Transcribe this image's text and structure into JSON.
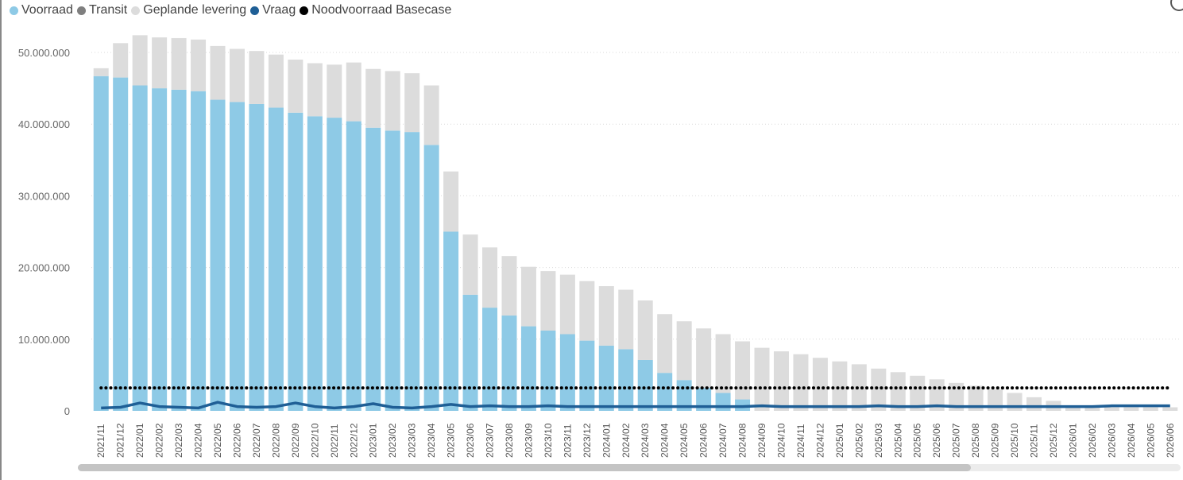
{
  "legend": [
    {
      "label": "Voorraad",
      "color": "#8ecae6"
    },
    {
      "label": "Transit",
      "color": "#7f7f7f"
    },
    {
      "label": "Geplande levering",
      "color": "#dcdcdc"
    },
    {
      "label": "Vraag",
      "color": "#1f5f96"
    },
    {
      "label": "Noodvoorraad Basecase",
      "color": "#000000"
    }
  ],
  "chart_data": {
    "type": "bar",
    "stacked": true,
    "x_tick_labels": [
      "2021/11",
      "2021/12",
      "2022/01",
      "2022/02",
      "2022/03",
      "2022/04",
      "2022/05",
      "2022/06",
      "2022/07",
      "2022/08",
      "2022/09",
      "2022/10",
      "2022/11",
      "2022/12",
      "2023/01",
      "2023/02",
      "2023/03",
      "2023/04",
      "2023/05",
      "2023/06",
      "2023/07",
      "2023/08",
      "2023/09",
      "2023/10",
      "2023/11",
      "2023/12",
      "2024/01",
      "2024/02",
      "2024/03",
      "2024/04",
      "2024/05",
      "2024/06",
      "2024/07",
      "2024/08",
      "2024/09",
      "2024/10",
      "2024/11",
      "2024/12",
      "2025/01",
      "2025/02",
      "2025/03",
      "2025/04",
      "2025/05",
      "2025/06",
      "2025/07",
      "2025/08",
      "2025/09",
      "2025/10",
      "2025/11",
      "2025/12",
      "2026/01",
      "2026/02",
      "2026/03",
      "2026/04",
      "2026/05",
      "2026/06"
    ],
    "y_tick_labels": [
      "0",
      "10.000.000",
      "20.000.000",
      "30.000.000",
      "40.000.000",
      "50.000.000"
    ],
    "ylim": [
      0,
      55000000
    ],
    "grid": true,
    "legend_position": "top-left",
    "series": [
      {
        "name": "Voorraad",
        "kind": "bar",
        "color": "#8ecae6",
        "values": [
          46700000,
          46500000,
          45400000,
          45000000,
          44800000,
          44600000,
          43400000,
          43100000,
          42800000,
          42300000,
          41600000,
          41100000,
          40900000,
          40400000,
          39500000,
          39100000,
          38900000,
          37100000,
          25000000,
          16200000,
          14400000,
          13300000,
          11800000,
          11200000,
          10700000,
          9800000,
          9100000,
          8600000,
          7100000,
          5300000,
          4300000,
          3200000,
          2500000,
          1600000,
          0,
          0,
          0,
          0,
          0,
          0,
          0,
          0,
          0,
          0,
          0,
          0,
          0,
          0,
          0,
          0,
          0,
          0,
          0,
          0,
          0,
          0
        ]
      },
      {
        "name": "Transit",
        "kind": "bar",
        "color": "#7f7f7f",
        "values": [
          0,
          0,
          0,
          0,
          0,
          0,
          0,
          0,
          0,
          0,
          0,
          0,
          0,
          0,
          0,
          0,
          0,
          0,
          0,
          0,
          0,
          0,
          0,
          0,
          0,
          0,
          0,
          0,
          0,
          0,
          0,
          0,
          0,
          0,
          0,
          0,
          0,
          0,
          0,
          0,
          0,
          0,
          0,
          0,
          0,
          0,
          0,
          0,
          0,
          0,
          0,
          0,
          0,
          0,
          0,
          0
        ]
      },
      {
        "name": "Geplande levering",
        "kind": "bar",
        "color": "#dcdcdc",
        "values": [
          1100000,
          4800000,
          7000000,
          7100000,
          7200000,
          7200000,
          7500000,
          7400000,
          7400000,
          7400000,
          7400000,
          7400000,
          7400000,
          8200000,
          8200000,
          8300000,
          8200000,
          8300000,
          8400000,
          8400000,
          8400000,
          8300000,
          8300000,
          8300000,
          8300000,
          8300000,
          8300000,
          8300000,
          8300000,
          8200000,
          8200000,
          8300000,
          8200000,
          8100000,
          8800000,
          8300000,
          7900000,
          7400000,
          6900000,
          6500000,
          5900000,
          5400000,
          4900000,
          4400000,
          3900000,
          3500000,
          3000000,
          2500000,
          1900000,
          1400000,
          700000,
          500000,
          500000,
          500000,
          500000,
          500000
        ]
      },
      {
        "name": "Vraag",
        "kind": "line",
        "color": "#1f5f96",
        "values": [
          400000,
          500000,
          1100000,
          600000,
          500000,
          400000,
          1200000,
          600000,
          500000,
          600000,
          1100000,
          600000,
          400000,
          600000,
          1000000,
          500000,
          400000,
          600000,
          900000,
          600000,
          700000,
          600000,
          600000,
          700000,
          600000,
          600000,
          600000,
          600000,
          600000,
          600000,
          600000,
          600000,
          600000,
          600000,
          700000,
          600000,
          600000,
          600000,
          600000,
          600000,
          700000,
          600000,
          600000,
          700000,
          600000,
          600000,
          600000,
          600000,
          600000,
          600000,
          600000,
          600000,
          700000,
          700000,
          700000,
          700000
        ]
      },
      {
        "name": "Noodvoorraad Basecase",
        "kind": "line",
        "style": "dotted",
        "color": "#000000",
        "values": [
          3200000,
          3200000,
          3200000,
          3200000,
          3200000,
          3200000,
          3200000,
          3200000,
          3200000,
          3200000,
          3200000,
          3200000,
          3200000,
          3200000,
          3200000,
          3200000,
          3200000,
          3200000,
          3200000,
          3200000,
          3200000,
          3200000,
          3200000,
          3200000,
          3200000,
          3200000,
          3200000,
          3200000,
          3200000,
          3200000,
          3200000,
          3200000,
          3200000,
          3200000,
          3200000,
          3200000,
          3200000,
          3200000,
          3200000,
          3200000,
          3200000,
          3200000,
          3200000,
          3200000,
          3200000,
          3200000,
          3200000,
          3200000,
          3200000,
          3200000,
          3200000,
          3200000,
          3200000,
          3200000,
          3200000,
          3200000
        ]
      }
    ]
  }
}
